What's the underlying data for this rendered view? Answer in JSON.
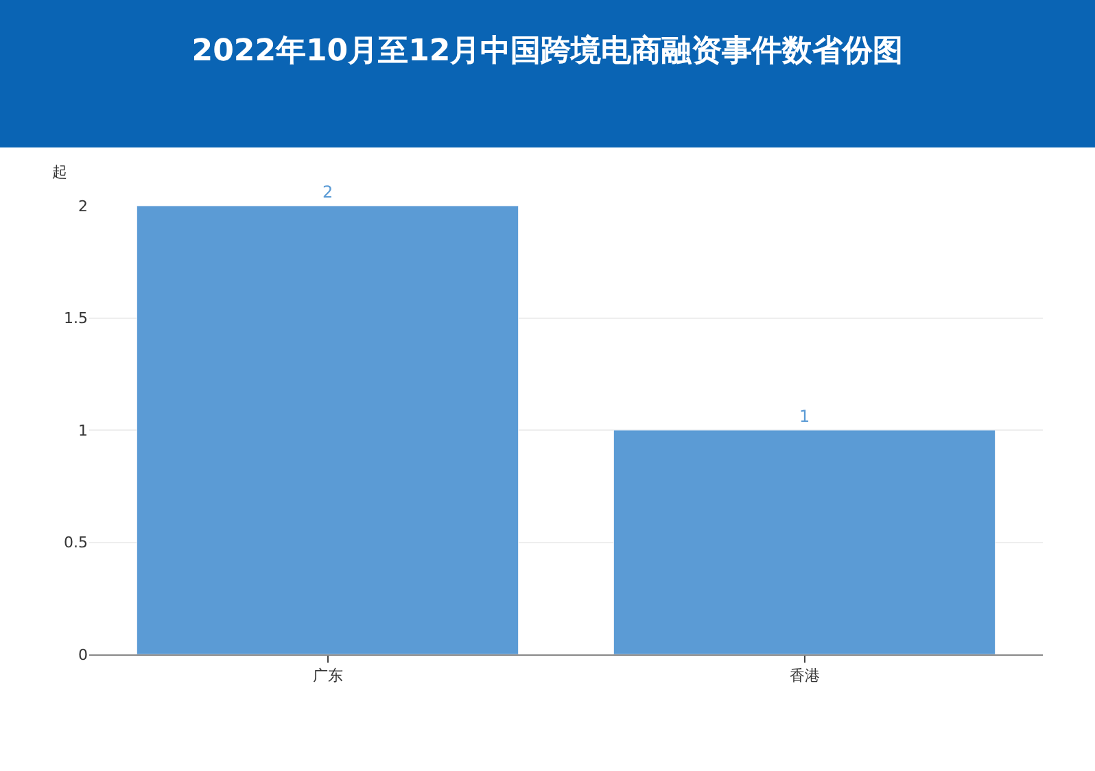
{
  "chart_data": {
    "type": "bar",
    "title": "2022年10月至12月中国跨境电商融资事件数省份图",
    "ylabel": "起",
    "categories": [
      "广东",
      "香港"
    ],
    "values": [
      2,
      1
    ],
    "color": "#5b9bd5",
    "ylim": [
      0,
      2
    ],
    "yticks": [
      0,
      0.5,
      1,
      1.5,
      2
    ],
    "grid": "y",
    "data_labels": true
  }
}
